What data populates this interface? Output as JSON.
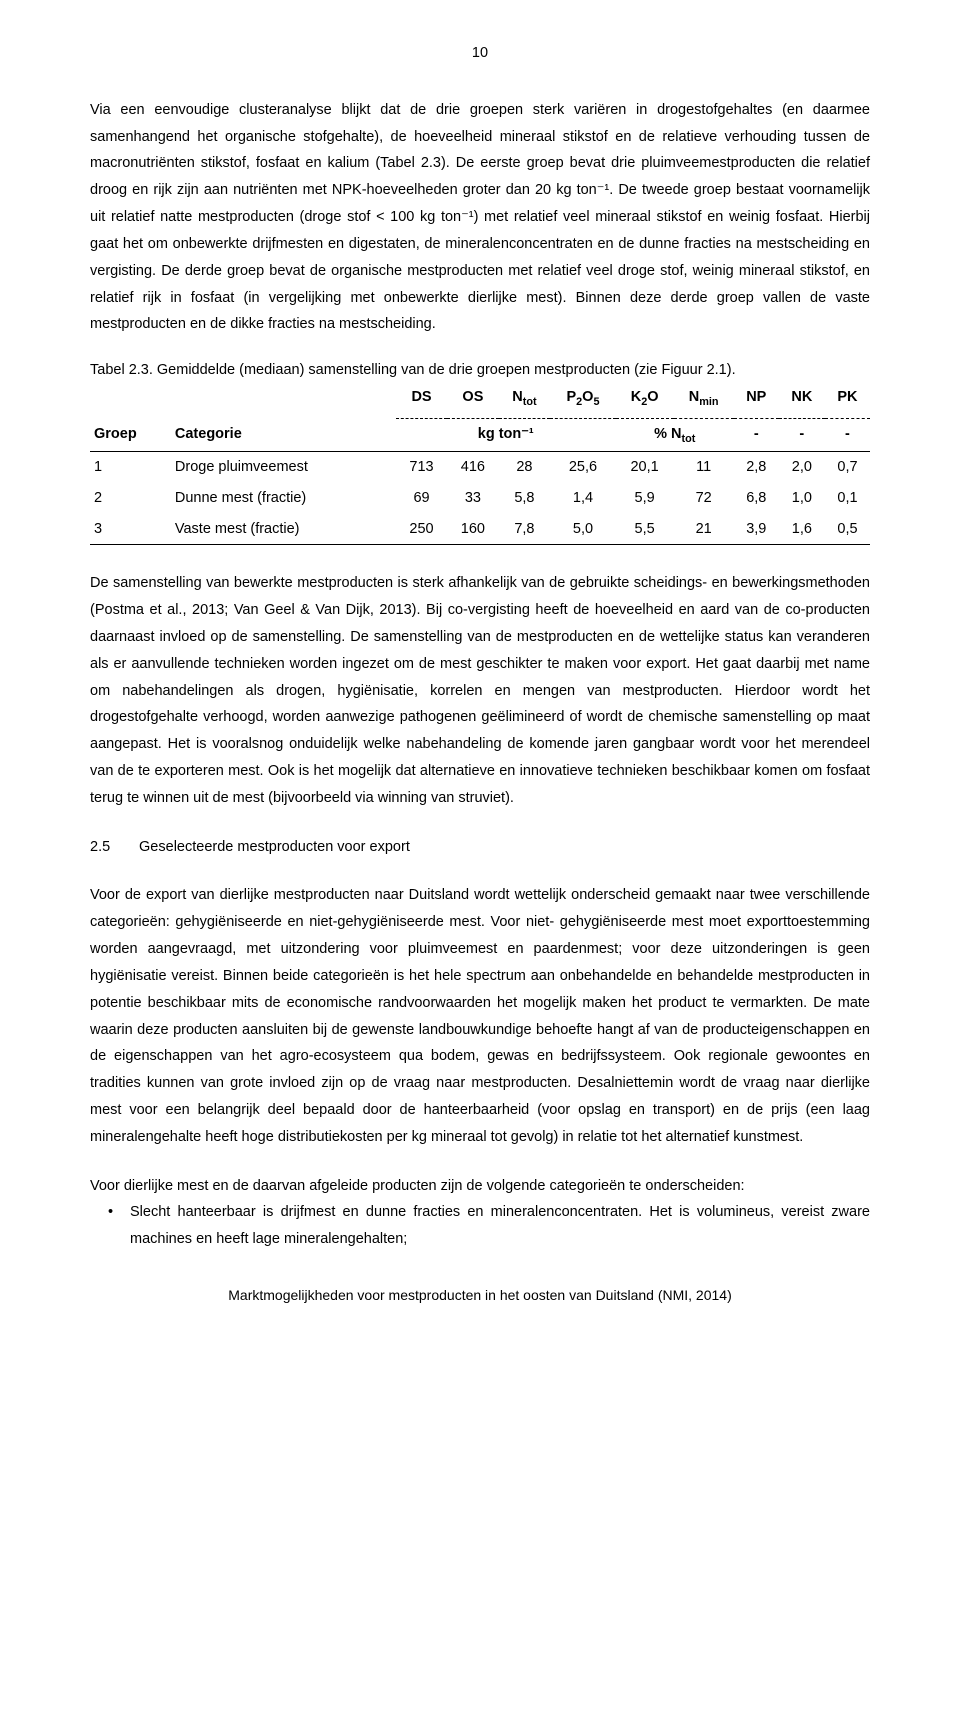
{
  "pageNumber": "10",
  "para1": "Via een eenvoudige clusteranalyse blijkt dat de drie groepen sterk variëren in drogestofgehaltes (en daarmee samenhangend het organische stofgehalte), de hoeveelheid mineraal stikstof en de relatieve verhouding tussen de macronutriënten stikstof, fosfaat en kalium (Tabel 2.3). De eerste groep bevat drie pluimveemestproducten die relatief droog en rijk zijn aan nutriënten met NPK-hoeveelheden groter dan 20 kg ton⁻¹. De tweede groep bestaat voornamelijk uit relatief natte mestproducten (droge stof < 100 kg ton⁻¹) met relatief veel mineraal stikstof en weinig fosfaat. Hierbij gaat het om onbewerkte drijfmesten en digestaten, de mineralenconcentraten en de dunne fracties na mestscheiding en vergisting. De derde groep bevat de organische mestproducten met relatief veel droge stof, weinig mineraal stikstof, en relatief rijk in fosfaat (in vergelijking met onbewerkte dierlijke mest). Binnen deze derde groep vallen de vaste mestproducten en de dikke fracties na mestscheiding.",
  "tableCaption": "Tabel 2.3. Gemiddelde (mediaan) samenstelling van de drie groepen mestproducten (zie Figuur 2.1).",
  "table": {
    "colTop": [
      "DS",
      "OS",
      "N",
      "P",
      "O",
      "K",
      "O",
      "N",
      "NP",
      "NK",
      "PK"
    ],
    "colMain": [
      "DS",
      "OS"
    ],
    "colGroep": "Groep",
    "colCategorie": "Categorie",
    "unitKg": "kg ton⁻¹",
    "unitNtot": "% N",
    "dash": "-",
    "rows": [
      {
        "g": "1",
        "cat": "Droge pluimveemest",
        "ds": "713",
        "os": "416",
        "ntot": "28",
        "p2o5": "25,6",
        "k2o": "20,1",
        "nmin": "11",
        "np": "2,8",
        "nk": "2,0",
        "pk": "0,7"
      },
      {
        "g": "2",
        "cat": "Dunne mest (fractie)",
        "ds": "69",
        "os": "33",
        "ntot": "5,8",
        "p2o5": "1,4",
        "k2o": "5,9",
        "nmin": "72",
        "np": "6,8",
        "nk": "1,0",
        "pk": "0,1"
      },
      {
        "g": "3",
        "cat": "Vaste mest (fractie)",
        "ds": "250",
        "os": "160",
        "ntot": "7,8",
        "p2o5": "5,0",
        "k2o": "5,5",
        "nmin": "21",
        "np": "3,9",
        "nk": "1,6",
        "pk": "0,5"
      }
    ]
  },
  "para2": "De samenstelling van bewerkte mestproducten is sterk afhankelijk van de gebruikte scheidings- en bewerkingsmethoden (Postma et al., 2013; Van Geel & Van Dijk, 2013). Bij co-vergisting heeft de hoeveelheid en aard van de co-producten daarnaast invloed op de samenstelling. De samenstelling van de mestproducten en de wettelijke status kan veranderen als er aanvullende technieken worden ingezet om de mest geschikter te maken voor export. Het gaat daarbij met name om nabehandelingen als drogen, hygiënisatie, korrelen en mengen van mestproducten. Hierdoor wordt het drogestofgehalte verhoogd, worden aanwezige pathogenen geëlimineerd of wordt de chemische samenstelling op maat aangepast. Het is vooralsnog onduidelijk welke nabehandeling de komende jaren gangbaar wordt voor het merendeel van de te exporteren mest. Ook is het mogelijk dat alternatieve en innovatieve technieken beschikbaar komen om fosfaat terug te winnen uit de mest (bijvoorbeeld via winning van struviet).",
  "sectionNum": "2.5",
  "sectionTitle": "Geselecteerde mestproducten voor export",
  "para3": "Voor de export van dierlijke mestproducten naar Duitsland wordt wettelijk onderscheid gemaakt naar twee verschillende categorieën: gehygiëniseerde en niet-gehygiëniseerde mest. Voor niet- gehygiëniseerde mest moet exporttoestemming worden aangevraagd, met uitzondering voor pluimveemest en paardenmest; voor deze uitzonderingen is geen hygiënisatie vereist. Binnen beide categorieën is het hele spectrum aan onbehandelde en behandelde mestproducten in potentie beschikbaar mits de economische randvoorwaarden het mogelijk maken het product te vermarkten. De mate waarin deze producten aansluiten bij de gewenste landbouwkundige behoefte hangt af van de producteigenschappen en de eigenschappen van het agro-ecosysteem qua bodem, gewas en bedrijfssysteem. Ook regionale gewoontes en tradities kunnen van grote invloed zijn op de vraag naar mestproducten. Desalniettemin wordt de vraag naar dierlijke mest voor een belangrijk deel bepaald door de hanteerbaarheid (voor opslag en transport) en de prijs (een laag mineralengehalte heeft hoge distributiekosten per kg mineraal tot gevolg) in relatie tot het alternatief kunstmest.",
  "para4": "Voor dierlijke mest en de daarvan afgeleide producten zijn de volgende categorieën te onderscheiden:",
  "bullet1": "Slecht hanteerbaar is drijfmest en dunne fracties en mineralenconcentraten. Het is volumineus, vereist zware machines en heeft lage mineralengehalten;",
  "footer": "Marktmogelijkheden voor mestproducten in het oosten van Duitsland (NMI, 2014)"
}
